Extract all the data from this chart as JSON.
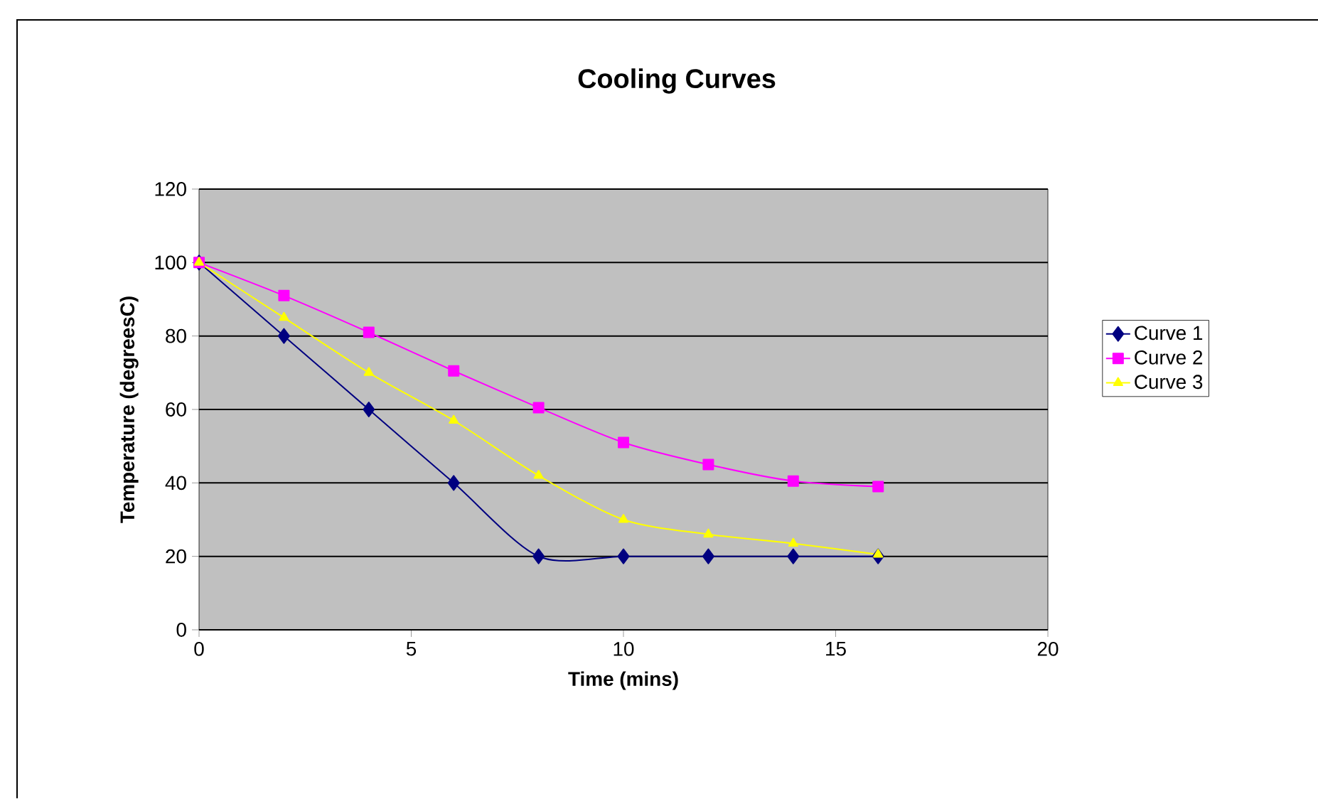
{
  "chart_data": {
    "type": "line",
    "title": "Cooling Curves",
    "xlabel": "Time (mins)",
    "ylabel": "Temperature (degreesC)",
    "x": [
      0,
      2,
      4,
      6,
      8,
      10,
      12,
      14,
      16
    ],
    "series": [
      {
        "name": "Curve 1",
        "color": "#000080",
        "marker": "diamond",
        "values": [
          100,
          80,
          60,
          40,
          20,
          20,
          20,
          20,
          20
        ]
      },
      {
        "name": "Curve 2",
        "color": "#ff00ff",
        "marker": "square",
        "values": [
          100,
          91,
          81,
          70.5,
          60.5,
          51,
          45,
          40.5,
          39
        ]
      },
      {
        "name": "Curve 3",
        "color": "#ffff00",
        "marker": "triangle",
        "values": [
          100,
          85,
          70,
          57,
          42,
          30,
          26,
          23.5,
          20.5
        ]
      }
    ],
    "xlim": [
      0,
      20
    ],
    "xticks": [
      0,
      5,
      10,
      15,
      20
    ],
    "ylim": [
      0,
      120
    ],
    "yticks": [
      0,
      20,
      40,
      60,
      80,
      100,
      120
    ],
    "grid": "y",
    "legend": "right",
    "line_style": "solid"
  }
}
